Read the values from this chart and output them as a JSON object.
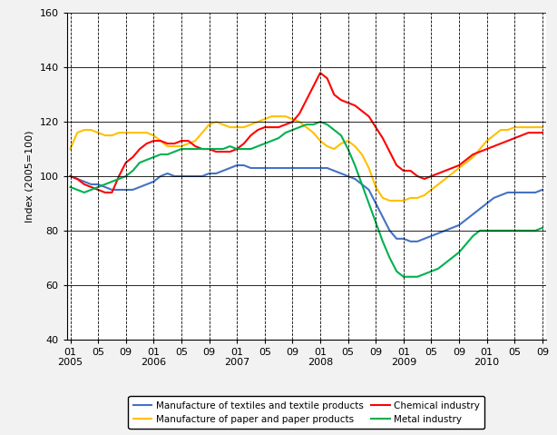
{
  "ylabel": "Index (2005=100)",
  "ylim": [
    40,
    160
  ],
  "yticks": [
    40,
    60,
    80,
    100,
    120,
    140,
    160
  ],
  "bg_color": "#f2f2f2",
  "plot_bg": "#ffffff",
  "colors": {
    "textiles": "#4472c4",
    "paper": "#ffc000",
    "chemical": "#ff0000",
    "metal": "#00b050"
  },
  "legend_labels": [
    "Manufacture of textiles and textile products",
    "Manufacture of paper and paper products",
    "Chemical industry",
    "Metal industry"
  ],
  "textiles": [
    100,
    99,
    98,
    97,
    97,
    96,
    95,
    95,
    95,
    95,
    96,
    97,
    98,
    100,
    101,
    100,
    100,
    100,
    100,
    100,
    101,
    101,
    102,
    103,
    104,
    104,
    103,
    103,
    103,
    103,
    103,
    103,
    103,
    103,
    103,
    103,
    103,
    103,
    102,
    101,
    100,
    99,
    97,
    95,
    90,
    85,
    80,
    77,
    77,
    76,
    76,
    77,
    78,
    79,
    80,
    81,
    82,
    84,
    86,
    88,
    90,
    92,
    93,
    94,
    94,
    94,
    94,
    94,
    95
  ],
  "paper": [
    110,
    116,
    117,
    117,
    116,
    115,
    115,
    116,
    116,
    116,
    116,
    116,
    115,
    113,
    111,
    111,
    111,
    112,
    113,
    116,
    119,
    120,
    119,
    118,
    118,
    118,
    119,
    120,
    121,
    122,
    122,
    122,
    121,
    120,
    118,
    116,
    113,
    111,
    110,
    112,
    113,
    111,
    108,
    103,
    96,
    92,
    91,
    91,
    91,
    92,
    92,
    93,
    95,
    97,
    99,
    101,
    103,
    105,
    107,
    110,
    113,
    115,
    117,
    117,
    118,
    118,
    118,
    118,
    118
  ],
  "chemical": [
    100,
    99,
    97,
    96,
    95,
    94,
    94,
    100,
    105,
    107,
    110,
    112,
    113,
    113,
    112,
    112,
    113,
    113,
    111,
    110,
    110,
    109,
    109,
    109,
    110,
    112,
    115,
    117,
    118,
    118,
    118,
    119,
    120,
    123,
    128,
    133,
    138,
    136,
    130,
    128,
    127,
    126,
    124,
    122,
    118,
    114,
    109,
    104,
    102,
    102,
    100,
    99,
    100,
    101,
    102,
    103,
    104,
    106,
    108,
    109,
    110,
    111,
    112,
    113,
    114,
    115,
    116,
    116,
    116
  ],
  "metal": [
    96,
    95,
    94,
    95,
    96,
    97,
    98,
    99,
    100,
    102,
    105,
    106,
    107,
    108,
    108,
    109,
    110,
    110,
    110,
    110,
    110,
    110,
    110,
    111,
    110,
    110,
    110,
    111,
    112,
    113,
    114,
    116,
    117,
    118,
    119,
    119,
    120,
    119,
    117,
    115,
    110,
    104,
    97,
    90,
    83,
    76,
    70,
    65,
    63,
    63,
    63,
    64,
    65,
    66,
    68,
    70,
    72,
    75,
    78,
    80,
    80,
    80,
    80,
    80,
    80,
    80,
    80,
    80,
    81
  ]
}
